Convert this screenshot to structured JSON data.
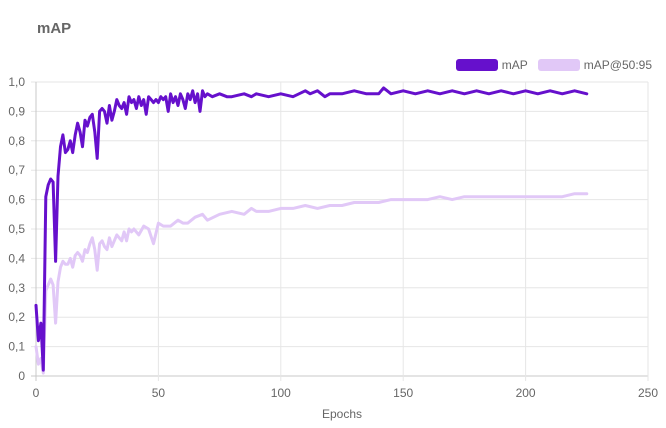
{
  "chart_data": {
    "type": "line",
    "title": "mAP",
    "xlabel": "Epochs",
    "ylabel": "",
    "xlim": [
      0,
      250
    ],
    "ylim": [
      0,
      1
    ],
    "x_ticks": [
      0,
      50,
      100,
      150,
      200,
      250
    ],
    "x_tick_labels": [
      "0",
      "50",
      "100",
      "150",
      "200",
      "250"
    ],
    "y_ticks": [
      0,
      0.1,
      0.2,
      0.3,
      0.4,
      0.5,
      0.6,
      0.7,
      0.8,
      0.9,
      1.0
    ],
    "y_tick_labels": [
      "0",
      "0,1",
      "0,2",
      "0,3",
      "0,4",
      "0,5",
      "0,6",
      "0,7",
      "0,8",
      "0,9",
      "1,0"
    ],
    "grid": true,
    "legend_position": "top-right",
    "series": [
      {
        "name": "mAP",
        "color": "#6610cc",
        "x": [
          0,
          1,
          2,
          3,
          4,
          5,
          6,
          7,
          8,
          9,
          10,
          11,
          12,
          13,
          14,
          15,
          16,
          17,
          18,
          19,
          20,
          21,
          22,
          23,
          24,
          25,
          26,
          27,
          28,
          29,
          30,
          31,
          32,
          33,
          34,
          35,
          36,
          37,
          38,
          39,
          40,
          41,
          42,
          43,
          44,
          45,
          46,
          47,
          48,
          49,
          50,
          51,
          52,
          53,
          54,
          55,
          56,
          57,
          58,
          59,
          60,
          61,
          62,
          63,
          64,
          65,
          66,
          67,
          68,
          69,
          70,
          72,
          75,
          78,
          80,
          85,
          88,
          90,
          95,
          100,
          105,
          110,
          112,
          115,
          118,
          120,
          125,
          130,
          135,
          140,
          142,
          145,
          150,
          155,
          160,
          165,
          170,
          175,
          180,
          185,
          190,
          195,
          200,
          205,
          210,
          215,
          220,
          225
        ],
        "y": [
          0.24,
          0.12,
          0.18,
          0.02,
          0.61,
          0.65,
          0.67,
          0.66,
          0.39,
          0.68,
          0.78,
          0.82,
          0.76,
          0.77,
          0.8,
          0.76,
          0.82,
          0.86,
          0.83,
          0.78,
          0.87,
          0.85,
          0.88,
          0.89,
          0.83,
          0.74,
          0.9,
          0.91,
          0.9,
          0.86,
          0.92,
          0.87,
          0.9,
          0.94,
          0.92,
          0.91,
          0.93,
          0.89,
          0.95,
          0.93,
          0.94,
          0.91,
          0.95,
          0.92,
          0.94,
          0.89,
          0.95,
          0.94,
          0.93,
          0.94,
          0.93,
          0.95,
          0.94,
          0.95,
          0.9,
          0.96,
          0.93,
          0.95,
          0.92,
          0.96,
          0.94,
          0.91,
          0.96,
          0.94,
          0.97,
          0.93,
          0.96,
          0.9,
          0.97,
          0.95,
          0.96,
          0.95,
          0.96,
          0.95,
          0.95,
          0.96,
          0.95,
          0.96,
          0.95,
          0.96,
          0.95,
          0.97,
          0.96,
          0.97,
          0.95,
          0.96,
          0.96,
          0.97,
          0.96,
          0.96,
          0.98,
          0.96,
          0.97,
          0.96,
          0.97,
          0.96,
          0.97,
          0.96,
          0.97,
          0.96,
          0.97,
          0.96,
          0.97,
          0.96,
          0.97,
          0.96,
          0.97,
          0.96
        ]
      },
      {
        "name": "mAP@50:95",
        "color": "#e1c8f7",
        "x": [
          0,
          1,
          2,
          3,
          4,
          5,
          6,
          7,
          8,
          9,
          10,
          11,
          12,
          13,
          14,
          15,
          16,
          17,
          18,
          19,
          20,
          21,
          22,
          23,
          24,
          25,
          26,
          27,
          28,
          29,
          30,
          31,
          32,
          33,
          34,
          35,
          36,
          37,
          38,
          39,
          40,
          42,
          44,
          46,
          48,
          50,
          52,
          55,
          58,
          60,
          62,
          65,
          68,
          70,
          75,
          80,
          85,
          88,
          90,
          95,
          100,
          105,
          110,
          115,
          120,
          125,
          130,
          135,
          140,
          145,
          150,
          155,
          160,
          165,
          170,
          175,
          180,
          185,
          190,
          195,
          200,
          205,
          210,
          215,
          220,
          225
        ],
        "y": [
          0.1,
          0.04,
          0.06,
          0.01,
          0.29,
          0.31,
          0.33,
          0.31,
          0.18,
          0.32,
          0.37,
          0.39,
          0.38,
          0.38,
          0.4,
          0.37,
          0.41,
          0.42,
          0.41,
          0.39,
          0.43,
          0.42,
          0.45,
          0.47,
          0.43,
          0.36,
          0.45,
          0.46,
          0.44,
          0.43,
          0.47,
          0.44,
          0.46,
          0.48,
          0.47,
          0.46,
          0.49,
          0.46,
          0.5,
          0.49,
          0.5,
          0.48,
          0.51,
          0.5,
          0.45,
          0.52,
          0.51,
          0.51,
          0.53,
          0.52,
          0.52,
          0.54,
          0.55,
          0.53,
          0.55,
          0.56,
          0.55,
          0.57,
          0.56,
          0.56,
          0.57,
          0.57,
          0.58,
          0.57,
          0.58,
          0.58,
          0.59,
          0.59,
          0.59,
          0.6,
          0.6,
          0.6,
          0.6,
          0.61,
          0.6,
          0.61,
          0.61,
          0.61,
          0.61,
          0.61,
          0.61,
          0.61,
          0.61,
          0.61,
          0.62,
          0.62
        ]
      }
    ]
  }
}
